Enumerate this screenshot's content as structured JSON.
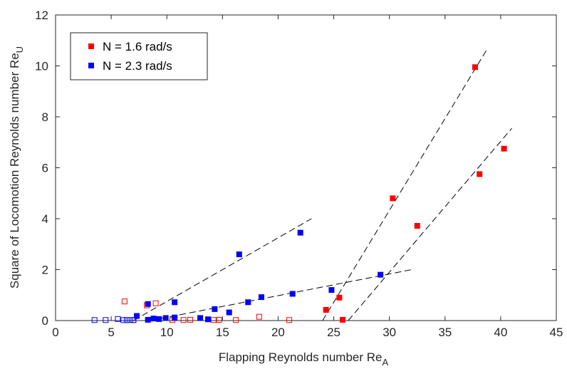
{
  "chart_data": {
    "type": "scatter",
    "xlim": [
      0,
      45
    ],
    "ylim": [
      0,
      12
    ],
    "xticks": [
      0,
      5,
      10,
      15,
      20,
      25,
      30,
      35,
      40,
      45
    ],
    "yticks": [
      0,
      2,
      4,
      6,
      8,
      10,
      12
    ],
    "xlabel": "Flapping Reynolds number Re",
    "xlabel_sub": "A",
    "ylabel": "Square of Locomotion Reynolds number Re",
    "ylabel_sub": "U",
    "grid": false,
    "legend_position": "top-left",
    "series": [
      {
        "name": "N = 1.6 rad/s",
        "color": "#ff0000",
        "filled": [
          {
            "x": 24.3,
            "y": 0.42
          },
          {
            "x": 25.5,
            "y": 0.9
          },
          {
            "x": 25.8,
            "y": 0.03
          },
          {
            "x": 30.3,
            "y": 4.8
          },
          {
            "x": 32.5,
            "y": 3.72
          },
          {
            "x": 37.7,
            "y": 9.95
          },
          {
            "x": 38.1,
            "y": 5.75
          },
          {
            "x": 40.3,
            "y": 6.75
          }
        ],
        "open": [
          {
            "x": 6.2,
            "y": 0.75
          },
          {
            "x": 7.0,
            "y": 0.02
          },
          {
            "x": 8.2,
            "y": 0.6
          },
          {
            "x": 9.0,
            "y": 0.68
          },
          {
            "x": 10.5,
            "y": 0.02
          },
          {
            "x": 11.5,
            "y": 0.02
          },
          {
            "x": 12.1,
            "y": 0.03
          },
          {
            "x": 14.2,
            "y": 0.02
          },
          {
            "x": 14.7,
            "y": 0.03
          },
          {
            "x": 16.2,
            "y": 0.02
          },
          {
            "x": 18.3,
            "y": 0.15
          },
          {
            "x": 21.0,
            "y": 0.02
          }
        ]
      },
      {
        "name": "N = 2.3 rad/s",
        "color": "#0000ff",
        "filled": [
          {
            "x": 7.3,
            "y": 0.18
          },
          {
            "x": 8.3,
            "y": 0.65
          },
          {
            "x": 8.3,
            "y": 0.03
          },
          {
            "x": 8.8,
            "y": 0.08
          },
          {
            "x": 9.3,
            "y": 0.06
          },
          {
            "x": 9.9,
            "y": 0.1
          },
          {
            "x": 10.7,
            "y": 0.72
          },
          {
            "x": 10.7,
            "y": 0.12
          },
          {
            "x": 13.0,
            "y": 0.1
          },
          {
            "x": 13.7,
            "y": 0.05
          },
          {
            "x": 14.3,
            "y": 0.45
          },
          {
            "x": 15.6,
            "y": 0.32
          },
          {
            "x": 16.5,
            "y": 2.6
          },
          {
            "x": 17.3,
            "y": 0.72
          },
          {
            "x": 18.5,
            "y": 0.92
          },
          {
            "x": 21.3,
            "y": 1.05
          },
          {
            "x": 22.0,
            "y": 3.45
          },
          {
            "x": 24.8,
            "y": 1.2
          },
          {
            "x": 29.2,
            "y": 1.8
          }
        ],
        "open": [
          {
            "x": 3.5,
            "y": 0.02
          },
          {
            "x": 4.5,
            "y": 0.02
          },
          {
            "x": 5.6,
            "y": 0.06
          },
          {
            "x": 6.1,
            "y": 0.02
          },
          {
            "x": 6.4,
            "y": 0.02
          },
          {
            "x": 6.7,
            "y": 0.02
          },
          {
            "x": 7.0,
            "y": 0.02
          }
        ]
      }
    ],
    "fit_lines": [
      {
        "x": [
          7.0,
          23.0
        ],
        "y": [
          0.0,
          4.0
        ]
      },
      {
        "x": [
          8.5,
          32.0
        ],
        "y": [
          0.0,
          2.0
        ]
      },
      {
        "x": [
          24.0,
          38.7
        ],
        "y": [
          0.0,
          10.6
        ]
      },
      {
        "x": [
          26.3,
          41.0
        ],
        "y": [
          0.0,
          7.55
        ]
      }
    ]
  }
}
